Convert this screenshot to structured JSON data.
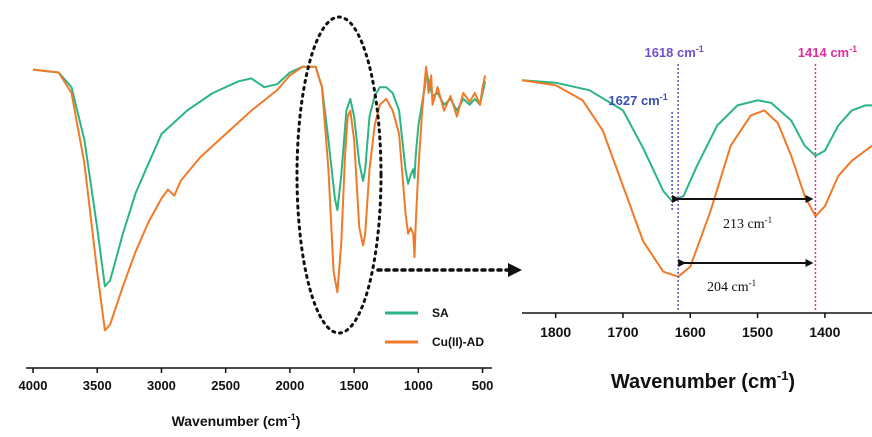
{
  "colors": {
    "SA": "#2bb582",
    "CuAD": "#f07a2a",
    "purple": "#7050c8",
    "magenta": "#e0309c",
    "blue": "#3a4fb8",
    "axis": "#111111"
  },
  "chart_data": [
    {
      "type": "line",
      "title": "",
      "xlabel": "Wavenumber (cm",
      "xlabel_sup": "-1",
      "xlabel_close": ")",
      "ylabel": "",
      "x_reversed": true,
      "xlim": [
        4000,
        450
      ],
      "x_ticks": [
        4000,
        3500,
        3000,
        2500,
        2000,
        1500,
        1000,
        500
      ],
      "x_tick_labels": [
        "4000",
        "3500",
        "3000",
        "2500",
        "2000",
        "1500",
        "1000",
        "500"
      ],
      "ylim": [
        0,
        100
      ],
      "y_axis_visible": false,
      "legend": {
        "placement": "bottom-right",
        "entries": [
          {
            "name": "SA",
            "color": "SA"
          },
          {
            "name": "Cu(II)-AD",
            "color": "CuAD"
          }
        ]
      },
      "highlight": {
        "shape": "dotted-ellipse",
        "x_center": 1600,
        "x_range": [
          1850,
          1350
        ]
      },
      "series": [
        {
          "name": "SA",
          "color": "SA",
          "points": [
            [
              4000,
              94
            ],
            [
              3800,
              93
            ],
            [
              3700,
              88
            ],
            [
              3600,
              70
            ],
            [
              3500,
              40
            ],
            [
              3440,
              20
            ],
            [
              3400,
              22
            ],
            [
              3300,
              38
            ],
            [
              3200,
              52
            ],
            [
              3100,
              62
            ],
            [
              3000,
              72
            ],
            [
              2900,
              76
            ],
            [
              2800,
              80
            ],
            [
              2600,
              86
            ],
            [
              2400,
              90
            ],
            [
              2300,
              91
            ],
            [
              2200,
              88
            ],
            [
              2100,
              89
            ],
            [
              2000,
              93
            ],
            [
              1900,
              95
            ],
            [
              1800,
              95
            ],
            [
              1750,
              88
            ],
            [
              1700,
              70
            ],
            [
              1650,
              50
            ],
            [
              1630,
              46
            ],
            [
              1600,
              58
            ],
            [
              1560,
              80
            ],
            [
              1530,
              84
            ],
            [
              1500,
              78
            ],
            [
              1460,
              62
            ],
            [
              1430,
              56
            ],
            [
              1414,
              60
            ],
            [
              1380,
              78
            ],
            [
              1340,
              85
            ],
            [
              1300,
              88
            ],
            [
              1250,
              88
            ],
            [
              1200,
              86
            ],
            [
              1150,
              80
            ],
            [
              1100,
              60
            ],
            [
              1080,
              55
            ],
            [
              1060,
              58
            ],
            [
              1040,
              60
            ],
            [
              1030,
              57
            ],
            [
              1020,
              65
            ],
            [
              1000,
              75
            ],
            [
              950,
              88
            ],
            [
              940,
              94
            ],
            [
              920,
              90
            ],
            [
              890,
              85
            ],
            [
              850,
              86
            ],
            [
              800,
              82
            ],
            [
              750,
              84
            ],
            [
              700,
              80
            ],
            [
              650,
              84
            ],
            [
              600,
              82
            ],
            [
              560,
              84
            ],
            [
              520,
              82
            ],
            [
              500,
              86
            ],
            [
              480,
              90
            ]
          ]
        },
        {
          "name": "Cu(II)-AD",
          "color": "CuAD",
          "points": [
            [
              4000,
              94
            ],
            [
              3800,
              93
            ],
            [
              3700,
              86
            ],
            [
              3600,
              62
            ],
            [
              3500,
              25
            ],
            [
              3440,
              5
            ],
            [
              3400,
              7
            ],
            [
              3300,
              20
            ],
            [
              3200,
              32
            ],
            [
              3100,
              42
            ],
            [
              3000,
              50
            ],
            [
              2950,
              53
            ],
            [
              2900,
              51
            ],
            [
              2850,
              56
            ],
            [
              2700,
              64
            ],
            [
              2500,
              72
            ],
            [
              2300,
              80
            ],
            [
              2100,
              87
            ],
            [
              2000,
              92
            ],
            [
              1900,
              95
            ],
            [
              1800,
              95
            ],
            [
              1750,
              88
            ],
            [
              1700,
              60
            ],
            [
              1660,
              25
            ],
            [
              1630,
              18
            ],
            [
              1600,
              35
            ],
            [
              1570,
              65
            ],
            [
              1550,
              78
            ],
            [
              1530,
              80
            ],
            [
              1500,
              70
            ],
            [
              1460,
              40
            ],
            [
              1430,
              34
            ],
            [
              1414,
              38
            ],
            [
              1380,
              60
            ],
            [
              1340,
              75
            ],
            [
              1300,
              82
            ],
            [
              1250,
              84
            ],
            [
              1200,
              80
            ],
            [
              1150,
              72
            ],
            [
              1100,
              45
            ],
            [
              1080,
              38
            ],
            [
              1060,
              40
            ],
            [
              1040,
              38
            ],
            [
              1030,
              30
            ],
            [
              1020,
              42
            ],
            [
              1000,
              60
            ],
            [
              970,
              80
            ],
            [
              950,
              90
            ],
            [
              940,
              95
            ],
            [
              920,
              86
            ],
            [
              900,
              92
            ],
            [
              890,
              82
            ],
            [
              850,
              88
            ],
            [
              800,
              80
            ],
            [
              750,
              85
            ],
            [
              700,
              78
            ],
            [
              650,
              86
            ],
            [
              600,
              83
            ],
            [
              560,
              86
            ],
            [
              520,
              82
            ],
            [
              500,
              88
            ],
            [
              480,
              92
            ]
          ]
        }
      ]
    },
    {
      "type": "line",
      "title": "",
      "xlabel": "Wavenumber (cm",
      "xlabel_sup": "-1",
      "xlabel_close": ")",
      "ylabel": "",
      "x_reversed": true,
      "xlim": [
        1850,
        1330
      ],
      "x_ticks": [
        1800,
        1700,
        1600,
        1500,
        1400
      ],
      "x_tick_labels": [
        "1800",
        "1700",
        "1600",
        "1500",
        "1400"
      ],
      "ylim": [
        0,
        100
      ],
      "y_axis_visible": false,
      "series": [
        {
          "name": "SA",
          "color": "SA",
          "points": [
            [
              1850,
              92
            ],
            [
              1800,
              91
            ],
            [
              1750,
              88
            ],
            [
              1700,
              80
            ],
            [
              1670,
              65
            ],
            [
              1640,
              48
            ],
            [
              1627,
              44
            ],
            [
              1610,
              46
            ],
            [
              1590,
              58
            ],
            [
              1560,
              74
            ],
            [
              1530,
              82
            ],
            [
              1500,
              84
            ],
            [
              1480,
              83
            ],
            [
              1450,
              76
            ],
            [
              1430,
              66
            ],
            [
              1414,
              62
            ],
            [
              1400,
              64
            ],
            [
              1380,
              74
            ],
            [
              1360,
              80
            ],
            [
              1340,
              82
            ],
            [
              1330,
              82
            ]
          ]
        },
        {
          "name": "Cu(II)-AD",
          "color": "CuAD",
          "points": [
            [
              1850,
              92
            ],
            [
              1800,
              90
            ],
            [
              1760,
              84
            ],
            [
              1730,
              72
            ],
            [
              1700,
              50
            ],
            [
              1670,
              28
            ],
            [
              1640,
              16
            ],
            [
              1618,
              14
            ],
            [
              1600,
              18
            ],
            [
              1570,
              40
            ],
            [
              1540,
              66
            ],
            [
              1510,
              78
            ],
            [
              1490,
              80
            ],
            [
              1470,
              75
            ],
            [
              1450,
              62
            ],
            [
              1430,
              46
            ],
            [
              1414,
              38
            ],
            [
              1400,
              42
            ],
            [
              1380,
              54
            ],
            [
              1360,
              60
            ],
            [
              1340,
              64
            ],
            [
              1330,
              66
            ]
          ]
        }
      ],
      "annotations": [
        {
          "label": "1618 cm",
          "sup": "-1",
          "x": 1618,
          "color": "purple"
        },
        {
          "label": "1414 cm",
          "sup": "-1",
          "x": 1414,
          "color": "magenta"
        },
        {
          "label": "1627 cm",
          "sup": "-1",
          "x": 1627,
          "color": "blue"
        },
        {
          "label": "213 cm",
          "sup": "-1",
          "from": 1627,
          "to": 1414,
          "series": "SA"
        },
        {
          "label": "204 cm",
          "sup": "-1",
          "from": 1618,
          "to": 1414,
          "series": "Cu(II)-AD"
        }
      ]
    }
  ]
}
